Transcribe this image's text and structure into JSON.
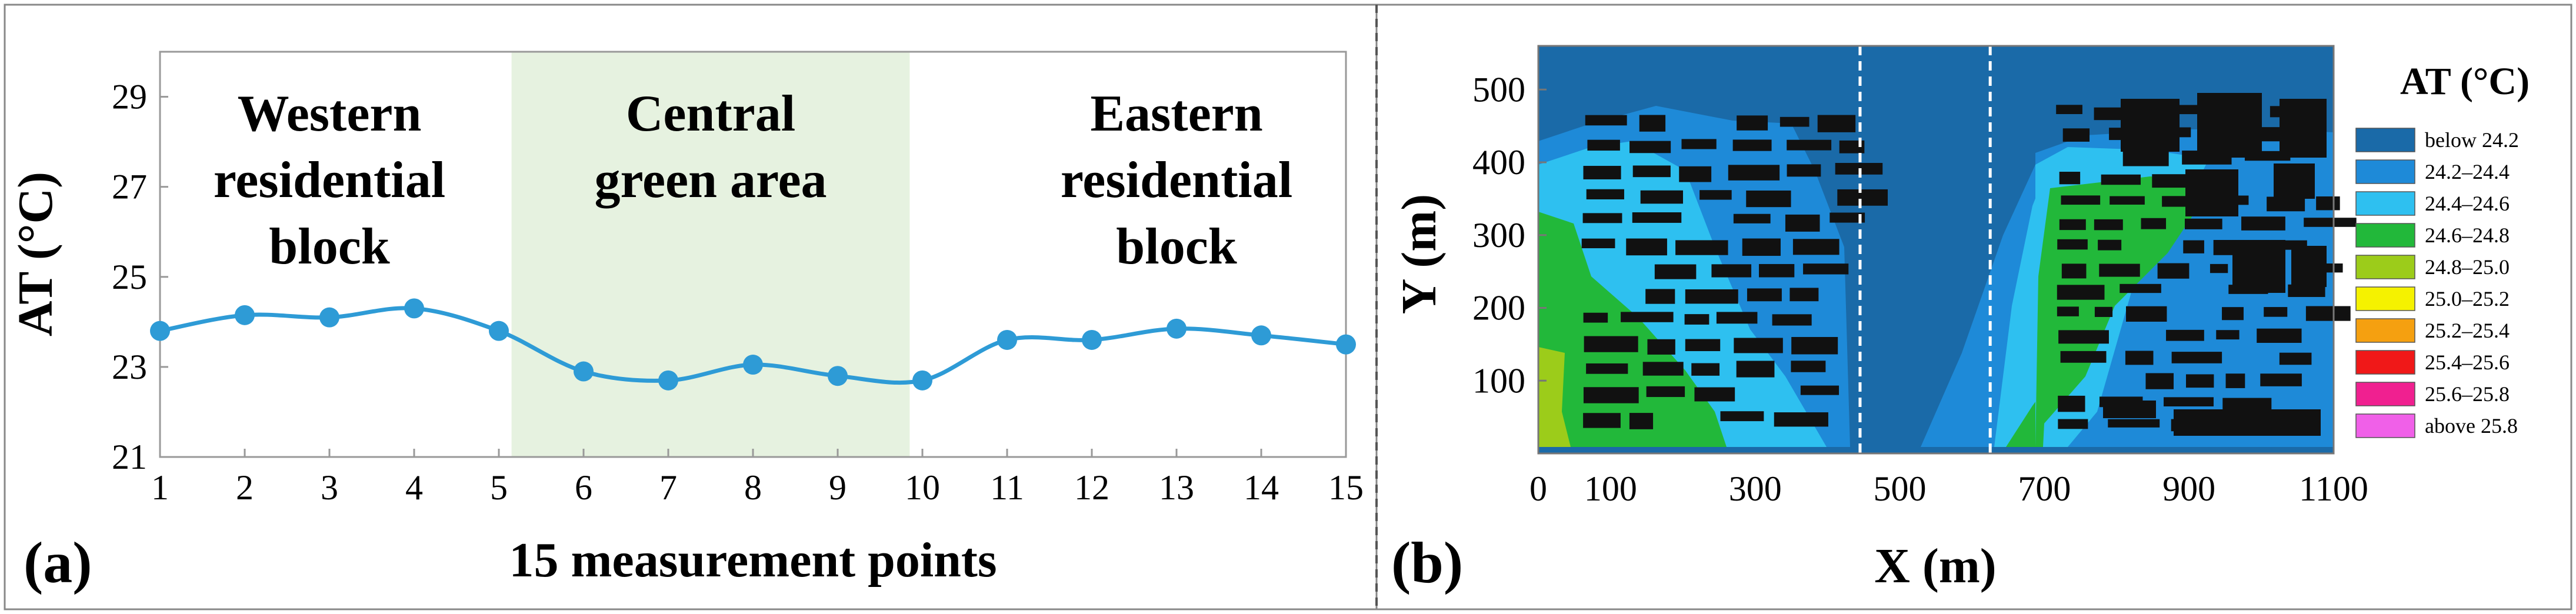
{
  "chart_data": [
    {
      "type": "line",
      "panel_label": "(a)",
      "title": "",
      "xlabel": "15 measurement points",
      "ylabel": "AT (°C)",
      "x": [
        1,
        2,
        3,
        4,
        5,
        6,
        7,
        8,
        9,
        10,
        11,
        12,
        13,
        14,
        15
      ],
      "x_tick_labels": [
        "1",
        "2",
        "3",
        "4",
        "5",
        "6",
        "7",
        "8",
        "9",
        "10",
        "11",
        "12",
        "13",
        "14",
        "15"
      ],
      "y_ticks": [
        21,
        23,
        25,
        27,
        29
      ],
      "y_tick_labels": [
        "21",
        "23",
        "25",
        "27",
        "29"
      ],
      "ylim": [
        21,
        30
      ],
      "xlim": [
        1,
        15
      ],
      "series": [
        {
          "values": [
            23.8,
            24.15,
            24.1,
            24.3,
            23.8,
            22.9,
            22.7,
            23.05,
            22.8,
            22.7,
            23.6,
            23.6,
            23.85,
            23.7,
            23.5
          ]
        }
      ],
      "shaded_region": {
        "x_start": 5.15,
        "x_end": 9.85,
        "color": "#e6f2e0"
      },
      "annotations": [
        {
          "lines": [
            "Western",
            "residential",
            "block"
          ],
          "x": 3.0
        },
        {
          "lines": [
            "Central",
            "green area"
          ],
          "x": 7.5
        },
        {
          "lines": [
            "Eastern",
            "residential",
            "block"
          ],
          "x": 13.0
        }
      ],
      "line_color": "#2e9bd6",
      "grid": false
    },
    {
      "type": "heatmap",
      "panel_label": "(b)",
      "title": "",
      "xlabel": "X (m)",
      "ylabel": "Y (m)",
      "x_ticks": [
        0,
        100,
        300,
        500,
        700,
        900,
        1100
      ],
      "x_tick_labels": [
        "0",
        "100",
        "300",
        "500",
        "700",
        "900",
        "1100"
      ],
      "y_ticks": [
        100,
        200,
        300,
        400,
        500
      ],
      "y_tick_labels": [
        "100",
        "200",
        "300",
        "400",
        "500"
      ],
      "xlim": [
        0,
        1100
      ],
      "ylim": [
        0,
        560
      ],
      "legend_title": "AT (°C)",
      "legend_position": "right",
      "legend": [
        {
          "label": "below 24.2",
          "color": "#1a6aa8"
        },
        {
          "label": "24.2–24.4",
          "color": "#1e8ad8"
        },
        {
          "label": "24.4–24.6",
          "color": "#2ec0f0"
        },
        {
          "label": "24.6–24.8",
          "color": "#22b83a"
        },
        {
          "label": "24.8–25.0",
          "color": "#9ccc1a"
        },
        {
          "label": "25.0–25.2",
          "color": "#f5f200"
        },
        {
          "label": "25.2–25.4",
          "color": "#f5a010"
        },
        {
          "label": "25.4–25.6",
          "color": "#f01818"
        },
        {
          "label": "25.6–25.8",
          "color": "#f02090"
        },
        {
          "label": "above 25.8",
          "color": "#f060e8"
        }
      ],
      "dashed_lines_x": [
        445,
        625
      ],
      "building_color": "#111111"
    }
  ],
  "divider_color": "#555555"
}
